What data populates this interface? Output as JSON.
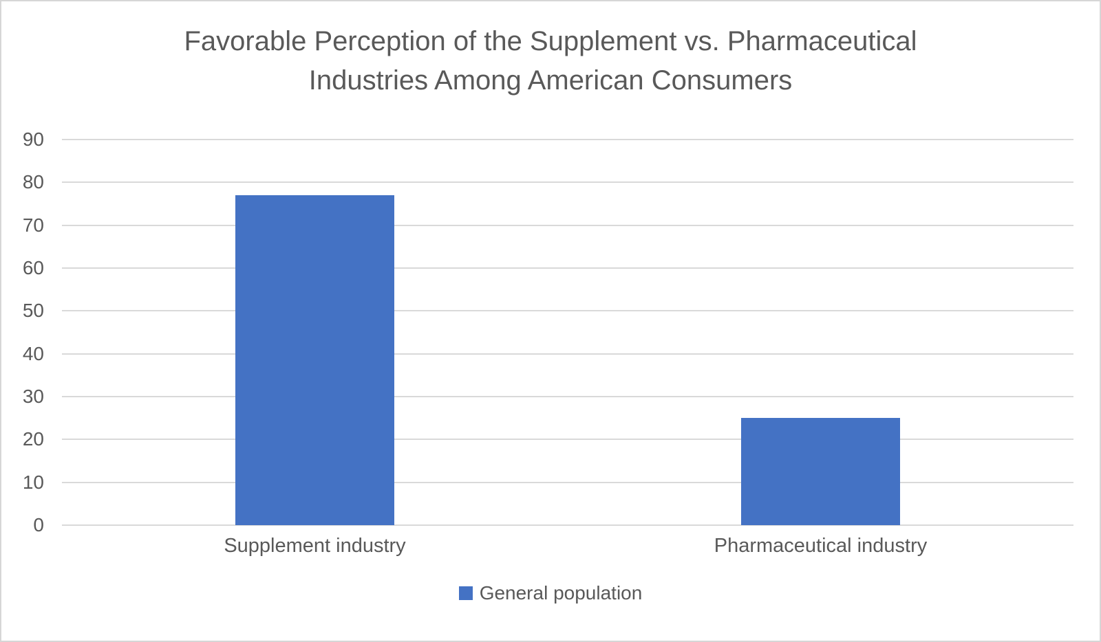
{
  "chart_data": {
    "type": "bar",
    "title": "Favorable Perception of the Supplement vs. Pharmaceutical Industries Among American Consumers",
    "categories": [
      "Supplement industry",
      "Pharmaceutical industry"
    ],
    "series": [
      {
        "name": "General population",
        "values": [
          77,
          25
        ]
      }
    ],
    "xlabel": "",
    "ylabel": "",
    "ylim": [
      0,
      90
    ],
    "ytick_step": 10,
    "grid": true,
    "legend_position": "bottom",
    "bar_color": "#4472C4",
    "text_color": "#595959",
    "gridline_color": "#D9D9D9"
  }
}
